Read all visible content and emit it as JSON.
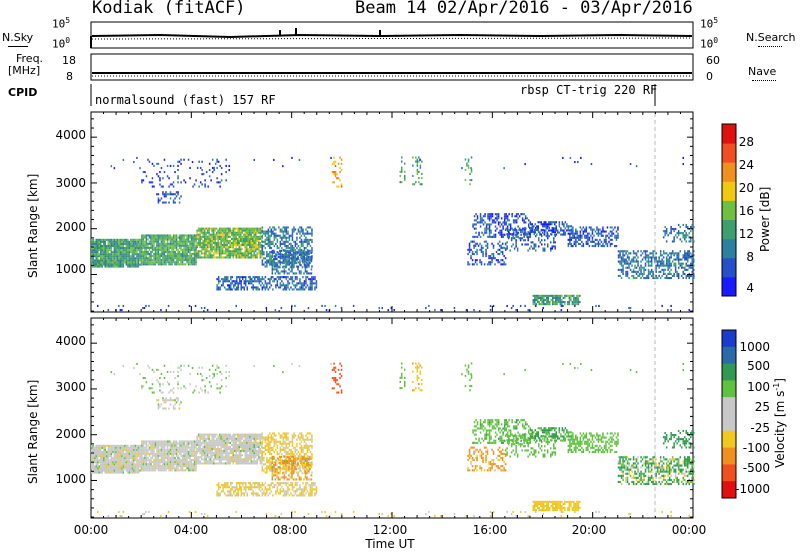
{
  "chart_data": {
    "type": "heatmap",
    "title": "Kodiak (fitACF)",
    "subtitle": "Beam 14  02/Apr/2016 - 03/Apr/2016",
    "xlabel": "Time UT",
    "x_ticks": [
      "00:00",
      "04:00",
      "08:00",
      "12:00",
      "16:00",
      "20:00",
      "00:00"
    ],
    "xlim_hours": [
      0,
      24
    ],
    "gridlines": false,
    "status_panels": {
      "nsky": {
        "label": "N.Sky",
        "left_ticks": [
          "10^5",
          "10^0"
        ],
        "right_label": "N.Search",
        "right_ticks": [
          "10^5",
          "10^0"
        ]
      },
      "freq": {
        "label_line1": "Freq.",
        "label_line2": "[MHz]",
        "left_ticks": [
          "18",
          "8"
        ],
        "right_label": "Nave",
        "right_ticks": [
          "60",
          "0"
        ]
      },
      "cpid": {
        "label": "CPID",
        "segments": [
          {
            "label": "normalsound (fast) 157 RF",
            "start_hour": 0.0,
            "end_hour": 22.6
          },
          {
            "label": "rbsp CT-trig 220 RF",
            "start_hour": 22.6,
            "end_hour": 24.0
          }
        ]
      }
    },
    "panels": [
      {
        "ylabel": "Slant Range [km]",
        "ylim": [
          180,
          4550
        ],
        "y_ticks": [
          "1000",
          "2000",
          "3000",
          "4000"
        ],
        "colorbar_label": "Power [dB]",
        "colorbar_ticks": [
          "4",
          "8",
          "12",
          "16",
          "20",
          "24",
          "28"
        ]
      },
      {
        "ylabel": "Slant Range [km]",
        "ylim": [
          180,
          4550
        ],
        "y_ticks": [
          "1000",
          "2000",
          "3000",
          "4000"
        ],
        "colorbar_label": "Velocity [m s-1]",
        "colorbar_ticks": [
          "1000",
          "500",
          "100",
          "25",
          "-25",
          "-100",
          "-500",
          "-1000"
        ]
      }
    ],
    "power_colors": [
      "#1a1aff",
      "#2550c8",
      "#2e7fa0",
      "#3f9d6e",
      "#70c040",
      "#f0c810",
      "#f09020",
      "#f05020",
      "#e01010"
    ],
    "velocity_colors": [
      "#1a3ccc",
      "#2a6aa8",
      "#309a50",
      "#60c040",
      "#c8c8c8",
      "#c8c8c8",
      "#f0c820",
      "#f09020",
      "#f05020",
      "#e01010"
    ],
    "regions": [
      {
        "t0": 0.0,
        "t1": 2.0,
        "r0": 1150,
        "r1": 1750,
        "power": 14,
        "vel": 0,
        "density": 0.95
      },
      {
        "t0": 2.0,
        "t1": 4.2,
        "r0": 1200,
        "r1": 1850,
        "power": 15,
        "vel": 0,
        "density": 0.92
      },
      {
        "t0": 4.2,
        "t1": 6.8,
        "r0": 1350,
        "r1": 2000,
        "power": 17,
        "vel": 0,
        "density": 0.9
      },
      {
        "t0": 6.8,
        "t1": 8.8,
        "r0": 1150,
        "r1": 2050,
        "power": 10,
        "vel": -40,
        "density": 0.55
      },
      {
        "t0": 7.2,
        "t1": 8.8,
        "r0": 1000,
        "r1": 1500,
        "power": 9,
        "vel": -150,
        "density": 0.45
      },
      {
        "t0": 5.0,
        "t1": 9.0,
        "r0": 650,
        "r1": 950,
        "power": 8,
        "vel": -30,
        "density": 0.6
      },
      {
        "t0": 2.6,
        "t1": 3.6,
        "r0": 2550,
        "r1": 2800,
        "power": 6,
        "vel": 0,
        "density": 0.4
      },
      {
        "t0": 2.0,
        "t1": 5.5,
        "r0": 2900,
        "r1": 3500,
        "power": 5,
        "vel": 20,
        "density": 0.12
      },
      {
        "t0": 15.0,
        "t1": 16.5,
        "r0": 1200,
        "r1": 1700,
        "power": 6,
        "vel": -200,
        "density": 0.35
      },
      {
        "t0": 15.2,
        "t1": 17.5,
        "r0": 1800,
        "r1": 2300,
        "power": 6,
        "vel": 80,
        "density": 0.45
      },
      {
        "t0": 16.5,
        "t1": 18.5,
        "r0": 1500,
        "r1": 2000,
        "power": 7,
        "vel": 60,
        "density": 0.3
      },
      {
        "t0": 17.5,
        "t1": 19.2,
        "r0": 1850,
        "r1": 2150,
        "power": 6,
        "vel": 100,
        "density": 0.45
      },
      {
        "t0": 19.0,
        "t1": 21.0,
        "r0": 1600,
        "r1": 2050,
        "power": 7,
        "vel": 60,
        "density": 0.5
      },
      {
        "t0": 21.0,
        "t1": 24.0,
        "r0": 900,
        "r1": 1500,
        "power": 9,
        "vel": 120,
        "density": 0.55
      },
      {
        "t0": 22.8,
        "t1": 24.0,
        "r0": 1700,
        "r1": 2100,
        "power": 9,
        "vel": 300,
        "density": 0.35
      },
      {
        "t0": 17.6,
        "t1": 19.5,
        "r0": 330,
        "r1": 550,
        "power": 14,
        "vel": -60,
        "density": 0.75
      },
      {
        "t0": 9.6,
        "t1": 10.0,
        "r0": 2900,
        "r1": 3550,
        "power": 26,
        "vel": -700,
        "density": 0.3
      },
      {
        "t0": 12.3,
        "t1": 12.5,
        "r0": 2950,
        "r1": 3550,
        "power": 16,
        "vel": 60,
        "density": 0.3
      },
      {
        "t0": 12.8,
        "t1": 13.2,
        "r0": 2950,
        "r1": 3550,
        "power": 14,
        "vel": -80,
        "density": 0.25
      },
      {
        "t0": 14.9,
        "t1": 15.2,
        "r0": 2950,
        "r1": 3550,
        "power": 14,
        "vel": 50,
        "density": 0.25
      },
      {
        "t0": 0.0,
        "t1": 24.0,
        "r0": 200,
        "r1": 320,
        "power": 6,
        "vel": -30,
        "density": 0.06
      },
      {
        "t0": 0.0,
        "t1": 24.0,
        "r0": 3300,
        "r1": 3560,
        "power": 5,
        "vel": 30,
        "density": 0.012
      }
    ]
  }
}
